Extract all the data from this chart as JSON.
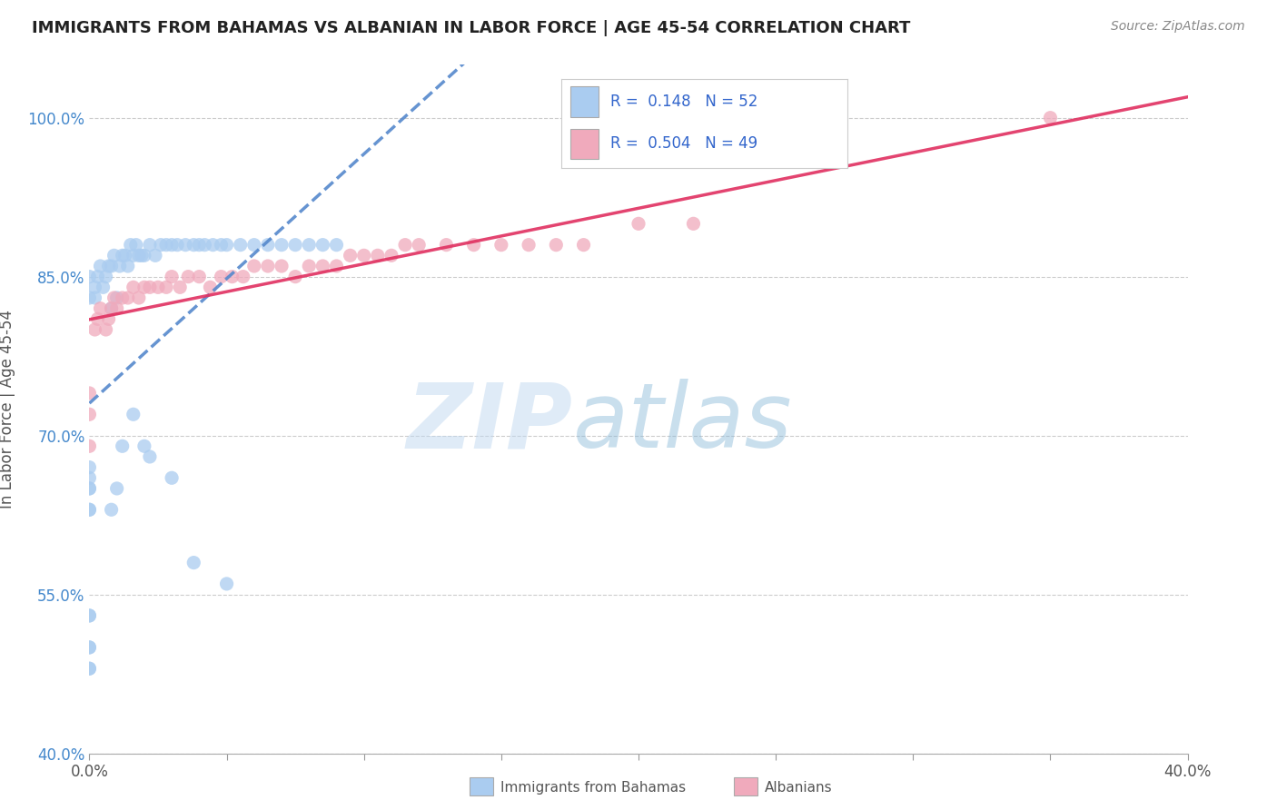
{
  "title": "IMMIGRANTS FROM BAHAMAS VS ALBANIAN IN LABOR FORCE | AGE 45-54 CORRELATION CHART",
  "source": "Source: ZipAtlas.com",
  "ylabel": "In Labor Force | Age 45-54",
  "xlim": [
    0.0,
    0.4
  ],
  "ylim": [
    0.4,
    1.05
  ],
  "xticks": [
    0.0,
    0.05,
    0.1,
    0.15,
    0.2,
    0.25,
    0.3,
    0.35,
    0.4
  ],
  "yticks": [
    0.4,
    0.55,
    0.7,
    0.85,
    1.0
  ],
  "ytick_labels": [
    "40.0%",
    "55.0%",
    "70.0%",
    "85.0%",
    "100.0%"
  ],
  "bahamas_color": "#aaccf0",
  "albanian_color": "#f0aabc",
  "bahamas_line_color": "#5588cc",
  "albanian_line_color": "#e03060",
  "r_bahamas": 0.148,
  "n_bahamas": 52,
  "r_albanian": 0.504,
  "n_albanian": 49,
  "watermark_zip": "ZIP",
  "watermark_atlas": "atlas",
  "bahamas_x": [
    0.0,
    0.0,
    0.0,
    0.0,
    0.0,
    0.0,
    0.0,
    0.0,
    0.0,
    0.0,
    0.002,
    0.002,
    0.003,
    0.004,
    0.005,
    0.006,
    0.007,
    0.008,
    0.008,
    0.009,
    0.01,
    0.011,
    0.012,
    0.013,
    0.014,
    0.015,
    0.016,
    0.017,
    0.018,
    0.019,
    0.02,
    0.022,
    0.024,
    0.026,
    0.028,
    0.03,
    0.032,
    0.035,
    0.038,
    0.04,
    0.042,
    0.045,
    0.048,
    0.05,
    0.055,
    0.06,
    0.065,
    0.07,
    0.075,
    0.08,
    0.085,
    0.09
  ],
  "bahamas_y": [
    0.48,
    0.5,
    0.53,
    0.63,
    0.65,
    0.65,
    0.66,
    0.67,
    0.83,
    0.85,
    0.83,
    0.84,
    0.85,
    0.86,
    0.84,
    0.85,
    0.86,
    0.82,
    0.86,
    0.87,
    0.83,
    0.86,
    0.87,
    0.87,
    0.86,
    0.88,
    0.87,
    0.88,
    0.87,
    0.87,
    0.87,
    0.88,
    0.87,
    0.88,
    0.88,
    0.88,
    0.88,
    0.88,
    0.88,
    0.88,
    0.88,
    0.88,
    0.88,
    0.88,
    0.88,
    0.88,
    0.88,
    0.88,
    0.88,
    0.88,
    0.88,
    0.88
  ],
  "bahamas_x_low": [
    0.0,
    0.0,
    0.0,
    0.0,
    0.008,
    0.01,
    0.012,
    0.016,
    0.02,
    0.022,
    0.03,
    0.038,
    0.05
  ],
  "bahamas_y_low": [
    0.48,
    0.5,
    0.53,
    0.63,
    0.63,
    0.65,
    0.69,
    0.72,
    0.69,
    0.68,
    0.66,
    0.58,
    0.56
  ],
  "albanian_x": [
    0.0,
    0.0,
    0.0,
    0.002,
    0.003,
    0.004,
    0.006,
    0.007,
    0.008,
    0.009,
    0.01,
    0.012,
    0.014,
    0.016,
    0.018,
    0.02,
    0.022,
    0.025,
    0.028,
    0.03,
    0.033,
    0.036,
    0.04,
    0.044,
    0.048,
    0.052,
    0.056,
    0.06,
    0.065,
    0.07,
    0.075,
    0.08,
    0.085,
    0.09,
    0.095,
    0.1,
    0.105,
    0.11,
    0.115,
    0.12,
    0.13,
    0.14,
    0.15,
    0.16,
    0.17,
    0.18,
    0.2,
    0.22,
    0.35
  ],
  "albanian_y": [
    0.69,
    0.72,
    0.74,
    0.8,
    0.81,
    0.82,
    0.8,
    0.81,
    0.82,
    0.83,
    0.82,
    0.83,
    0.83,
    0.84,
    0.83,
    0.84,
    0.84,
    0.84,
    0.84,
    0.85,
    0.84,
    0.85,
    0.85,
    0.84,
    0.85,
    0.85,
    0.85,
    0.86,
    0.86,
    0.86,
    0.85,
    0.86,
    0.86,
    0.86,
    0.87,
    0.87,
    0.87,
    0.87,
    0.88,
    0.88,
    0.88,
    0.88,
    0.88,
    0.88,
    0.88,
    0.88,
    0.9,
    0.9,
    1.0
  ]
}
